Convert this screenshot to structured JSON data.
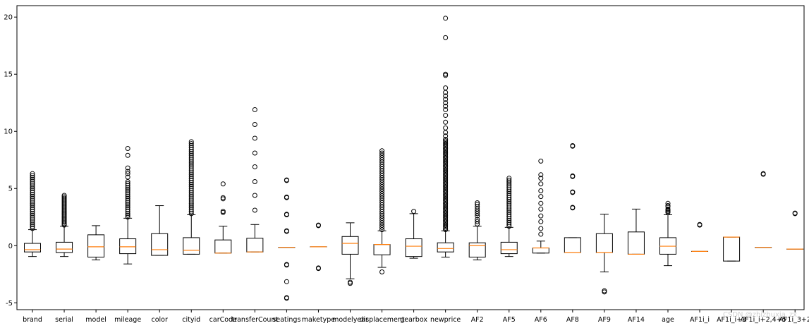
{
  "chart_data": {
    "type": "boxplot",
    "ylim": [
      -5.6,
      21.0
    ],
    "yticks": [
      -5,
      0,
      5,
      10,
      15,
      20
    ],
    "colors": {
      "median": "#ff7f0e",
      "box": "#000000",
      "flier": "#000000",
      "background": "#ffffff"
    },
    "grid": false,
    "watermark": "CSDN @zhizhuxia_zx",
    "series": [
      {
        "name": "brand",
        "min": -0.95,
        "q1": -0.55,
        "median": -0.35,
        "q3": 0.2,
        "max": 1.4,
        "outliers": [
          {
            "from": 1.5,
            "to": 6.3,
            "n": 30
          }
        ]
      },
      {
        "name": "serial",
        "min": -0.95,
        "q1": -0.6,
        "median": -0.3,
        "q3": 0.3,
        "max": 1.7,
        "outliers": [
          {
            "from": 1.8,
            "to": 4.4,
            "n": 22
          }
        ]
      },
      {
        "name": "model",
        "min": -1.25,
        "q1": -1.0,
        "median": -0.1,
        "q3": 0.95,
        "max": 1.75,
        "outliers": []
      },
      {
        "name": "mileage",
        "min": -1.6,
        "q1": -0.7,
        "median": -0.1,
        "q3": 0.6,
        "max": 2.4,
        "outliers": [
          {
            "from": 2.5,
            "to": 5.6,
            "n": 20
          },
          6.0,
          6.3,
          6.5,
          6.8,
          7.9,
          8.5
        ]
      },
      {
        "name": "color",
        "min": -0.85,
        "q1": -0.85,
        "median": -0.35,
        "q3": 1.05,
        "max": 3.5,
        "outliers": []
      },
      {
        "name": "cityid",
        "min": -0.75,
        "q1": -0.75,
        "median": -0.4,
        "q3": 0.7,
        "max": 2.7,
        "outliers": [
          {
            "from": 2.8,
            "to": 9.1,
            "n": 38
          }
        ]
      },
      {
        "name": "carCode",
        "min": -0.65,
        "q1": -0.65,
        "median": -0.65,
        "q3": 0.5,
        "max": 1.7,
        "outliers": [
          2.9,
          3.0,
          4.1,
          4.2,
          5.4
        ]
      },
      {
        "name": "transferCount",
        "min": -0.55,
        "q1": -0.55,
        "median": -0.55,
        "q3": 0.65,
        "max": 1.85,
        "outliers": [
          3.1,
          4.4,
          5.6,
          6.9,
          8.1,
          9.4,
          10.6,
          11.9
        ]
      },
      {
        "name": "seatings",
        "min": -0.15,
        "q1": -0.15,
        "median": -0.15,
        "q3": -0.15,
        "max": -0.15,
        "outliers": [
          -4.6,
          -4.55,
          -3.15,
          -1.7,
          -1.65,
          1.25,
          1.3,
          2.7,
          2.75,
          4.2,
          4.25,
          5.7,
          5.75
        ]
      },
      {
        "name": "maketype",
        "min": -0.1,
        "q1": -0.1,
        "median": -0.1,
        "q3": -0.1,
        "max": -0.1,
        "outliers": [
          -2.0,
          -1.95,
          1.75,
          1.8
        ]
      },
      {
        "name": "modelyear",
        "min": -2.9,
        "q1": -0.75,
        "median": 0.2,
        "q3": 0.8,
        "max": 2.0,
        "outliers": [
          -3.3,
          -3.2
        ]
      },
      {
        "name": "displacement",
        "min": -1.9,
        "q1": -0.8,
        "median": 0.1,
        "q3": 0.1,
        "max": 1.3,
        "outliers": [
          -2.3,
          {
            "from": 1.4,
            "to": 8.3,
            "n": 36
          }
        ]
      },
      {
        "name": "gearbox",
        "min": -1.1,
        "q1": -0.95,
        "median": -0.05,
        "q3": 0.6,
        "max": 2.8,
        "outliers": [
          3.0
        ]
      },
      {
        "name": "newprice",
        "min": -1.0,
        "q1": -0.55,
        "median": -0.25,
        "q3": 0.25,
        "max": 1.3,
        "outliers": [
          {
            "from": 1.4,
            "to": 9.3,
            "n": 60
          },
          9.6,
          9.9,
          10.3,
          10.8,
          11.4,
          11.9,
          12.2,
          12.5,
          12.8,
          13.1,
          13.4,
          13.8,
          14.9,
          15.0,
          18.2,
          19.9
        ]
      },
      {
        "name": "AF2",
        "min": -1.25,
        "q1": -1.0,
        "median": 0.0,
        "q3": 0.25,
        "max": 1.7,
        "outliers": [
          1.9,
          2.1,
          2.3,
          2.6,
          2.8,
          3.0,
          3.2,
          3.4,
          3.6,
          3.75
        ]
      },
      {
        "name": "AF5",
        "min": -0.95,
        "q1": -0.7,
        "median": -0.35,
        "q3": 0.3,
        "max": 1.6,
        "outliers": [
          {
            "from": 1.7,
            "to": 5.9,
            "n": 26
          }
        ]
      },
      {
        "name": "AF6",
        "min": -0.65,
        "q1": -0.65,
        "median": -0.2,
        "q3": -0.2,
        "max": 0.4,
        "outliers": [
          1.0,
          1.5,
          2.1,
          2.6,
          3.2,
          3.7,
          4.3,
          4.8,
          5.4,
          5.9,
          6.2,
          7.4
        ]
      },
      {
        "name": "AF8",
        "min": -0.6,
        "q1": -0.6,
        "median": -0.6,
        "q3": 0.7,
        "max": 0.7,
        "outliers": [
          3.3,
          3.35,
          4.65,
          4.7,
          6.05,
          6.1,
          8.7,
          8.75
        ]
      },
      {
        "name": "AF9",
        "min": -2.3,
        "q1": -0.6,
        "median": -0.6,
        "q3": 1.05,
        "max": 2.75,
        "outliers": [
          -4.05,
          -3.95
        ]
      },
      {
        "name": "AF14",
        "min": -0.75,
        "q1": -0.75,
        "median": -0.75,
        "q3": 1.2,
        "max": 3.2,
        "outliers": []
      },
      {
        "name": "age",
        "min": -1.75,
        "q1": -0.75,
        "median": -0.05,
        "q3": 0.7,
        "max": 2.7,
        "outliers": [
          2.9,
          3.0,
          3.1,
          3.2,
          3.4,
          3.5,
          3.7
        ]
      },
      {
        "name": "AF1i_i",
        "min": -0.5,
        "q1": -0.5,
        "median": -0.5,
        "q3": -0.5,
        "max": -0.5,
        "outliers": [
          1.8,
          1.85
        ]
      },
      {
        "name": "AF1i_i+3",
        "min": -1.35,
        "q1": -1.35,
        "median": 0.75,
        "q3": 0.75,
        "max": 0.75,
        "outliers": []
      },
      {
        "name": "AF1i_i+2,4+5",
        "min": -0.15,
        "q1": -0.15,
        "median": -0.15,
        "q3": -0.15,
        "max": -0.15,
        "outliers": [
          6.25,
          6.3
        ]
      },
      {
        "name": "AF1i_3+2",
        "min": -0.3,
        "q1": -0.3,
        "median": -0.3,
        "q3": -0.3,
        "max": -0.3,
        "outliers": [
          2.8,
          2.85
        ]
      }
    ]
  }
}
